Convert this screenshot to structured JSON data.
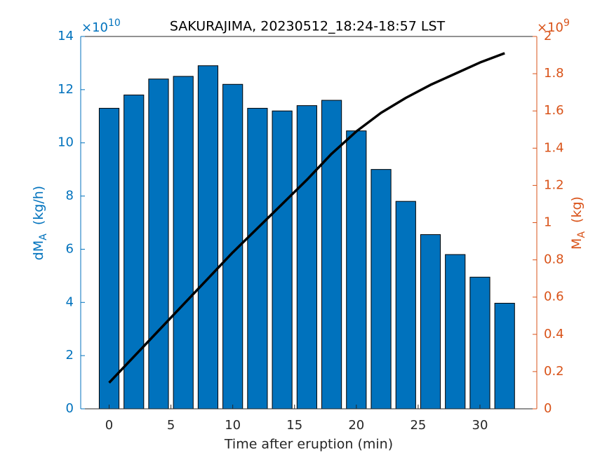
{
  "chart_data": {
    "type": "bar",
    "title": "SAKURAJIMA, 20230512_18:24-18:57 LST",
    "xlabel": "Time after eruption (min)",
    "ylabel": {
      "main": "dM",
      "sub": "A",
      "unit": "(kg/h)"
    },
    "y2label": {
      "main": "M",
      "sub": "A",
      "unit": "(kg)"
    },
    "y_exponent": {
      "base": "×10",
      "power": "10"
    },
    "y2_exponent": {
      "base": "×10",
      "power": "9"
    },
    "x": [
      0,
      2,
      4,
      6,
      8,
      10,
      12,
      14,
      16,
      18,
      20,
      22,
      24,
      26,
      28,
      30,
      32
    ],
    "xlim": [
      -2.3,
      34.6
    ],
    "xticks": [
      0,
      5,
      10,
      15,
      20,
      25,
      30
    ],
    "ylim": [
      0,
      14
    ],
    "yticks": [
      0,
      2,
      4,
      6,
      8,
      10,
      12,
      14
    ],
    "y2lim": [
      0,
      2
    ],
    "y2ticks": [
      0,
      0.2,
      0.4,
      0.6,
      0.8,
      1,
      1.2,
      1.4,
      1.6,
      1.8,
      2
    ],
    "y_color": "#0072bd",
    "y2_color": "#d95319",
    "series": [
      {
        "type": "bar",
        "color": "#0072bd",
        "edge_color": "#000000",
        "values": [
          11.3,
          11.8,
          12.4,
          12.5,
          12.9,
          12.2,
          11.3,
          11.2,
          11.4,
          11.6,
          10.45,
          9.0,
          7.8,
          6.55,
          5.8,
          4.95,
          3.97
        ]
      },
      {
        "type": "line",
        "axis": "y2",
        "color": "#000000",
        "values": [
          0.14,
          0.28,
          0.42,
          0.56,
          0.7,
          0.84,
          0.97,
          1.1,
          1.23,
          1.37,
          1.49,
          1.59,
          1.67,
          1.74,
          1.8,
          1.86,
          1.91
        ]
      }
    ]
  }
}
